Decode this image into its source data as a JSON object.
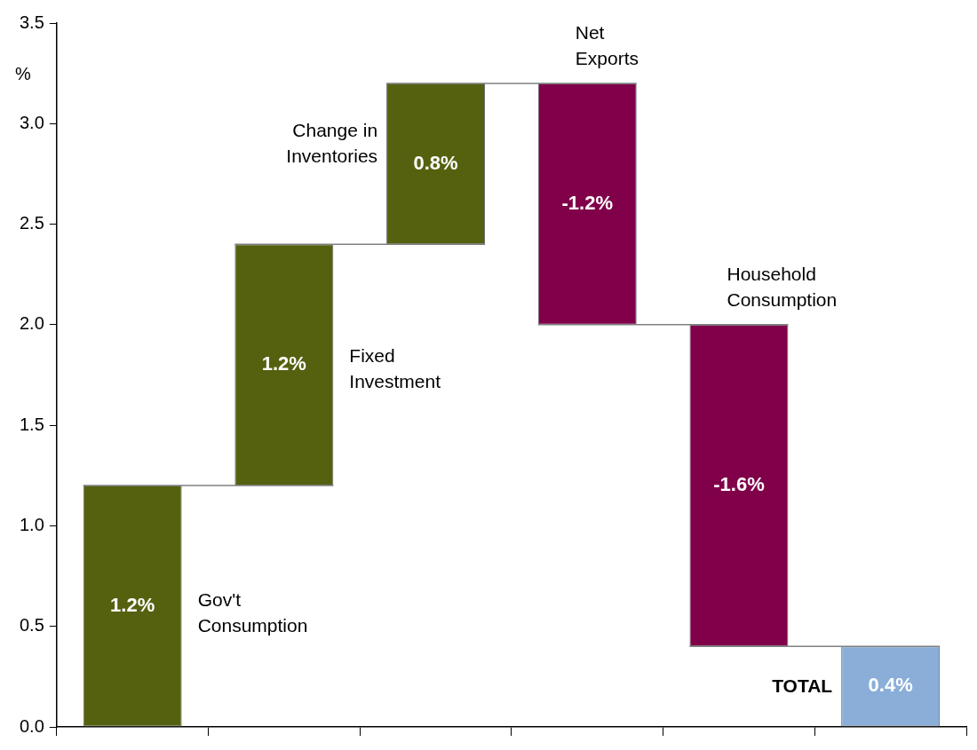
{
  "chart_data": {
    "type": "bar",
    "ylabel": "%",
    "categories": [
      null,
      null,
      null,
      null,
      null,
      null
    ],
    "annotations": [
      "Gov't Consumption",
      "Fixed Investment",
      "Change in Inventories",
      "Net Exports",
      "Household Consumption",
      "TOTAL"
    ],
    "ref_lines": [
      {
        "axis": "y",
        "value": 1.2,
        "color": "#808080"
      },
      {
        "axis": "y",
        "value": 2.4,
        "color": "#808080"
      },
      {
        "axis": "y",
        "value": 3.2,
        "color": "#808080"
      },
      {
        "axis": "y",
        "value": 2.0,
        "color": "#808080"
      },
      {
        "axis": "y",
        "value": 0.4,
        "color": "#808080"
      }
    ],
    "values": [
      1.2,
      1.2,
      0.8,
      -1.2,
      -1.6,
      0.4
    ],
    "base": [
      0,
      1.2,
      2.4,
      3.2,
      2.0,
      0
    ],
    "colors": [
      "#55610f",
      "#55610f",
      "#55610f",
      "#80004a",
      "#80004a",
      "#8aaed8"
    ],
    "value_labels": [
      "1.2%",
      "1.2%",
      "0.8%",
      "-1.2%",
      "-1.6%",
      "0.4%"
    ],
    "ylim": [
      0,
      3.5
    ],
    "yticks": [
      {
        "value": 0,
        "label": "0.0"
      },
      {
        "value": 0.5,
        "label": "0.5"
      },
      {
        "value": 1,
        "label": "1.0"
      },
      {
        "value": 1.5,
        "label": "1.5"
      },
      {
        "value": 2,
        "label": "2.0"
      },
      {
        "value": 2.5,
        "label": "2.5"
      },
      {
        "value": 3,
        "label": "3.0"
      },
      {
        "value": 3.5,
        "label": "3.5"
      }
    ],
    "grid": false,
    "legend": false,
    "tick_labels": "y"
  }
}
